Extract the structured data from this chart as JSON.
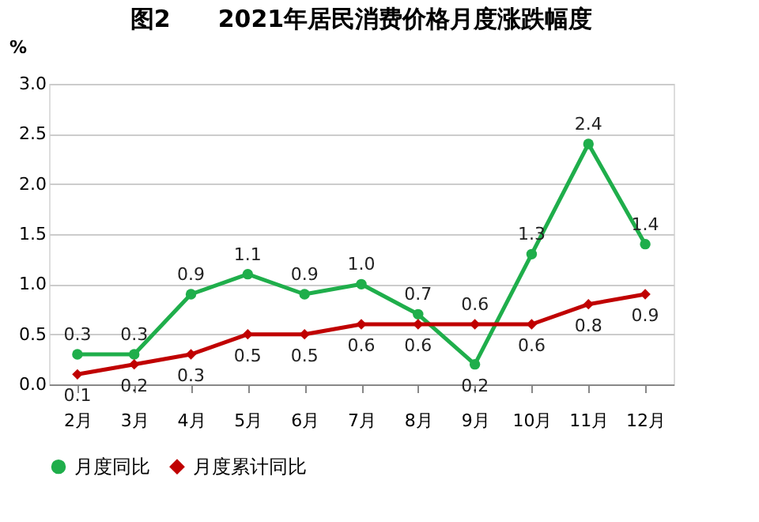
{
  "chart_data": {
    "type": "line",
    "title": "图2　　2021年居民消费价格月度涨跌幅度",
    "ylabel": "%",
    "categories": [
      "2月",
      "3月",
      "4月",
      "5月",
      "6月",
      "7月",
      "8月",
      "9月",
      "10月",
      "11月",
      "12月"
    ],
    "series": [
      {
        "name": "月度同比",
        "color": "#1fae4b",
        "marker": "circle",
        "values": [
          0.3,
          0.3,
          0.9,
          1.1,
          0.9,
          1.0,
          0.7,
          0.2,
          1.3,
          2.4,
          1.4
        ],
        "value_labels": [
          "0.3",
          "0.3",
          "0.9",
          "1.1",
          "0.9",
          "1.0",
          "0.7",
          "0.2",
          "1.3",
          "2.4",
          "1.4"
        ]
      },
      {
        "name": "月度累计同比",
        "color": "#c00000",
        "marker": "diamond",
        "values": [
          0.1,
          0.2,
          0.3,
          0.5,
          0.5,
          0.6,
          0.6,
          0.6,
          0.6,
          0.8,
          0.9
        ],
        "value_labels": [
          "0.1",
          "0.2",
          "0.3",
          "0.5",
          "0.5",
          "0.6",
          "0.6",
          "0.6",
          "0.6",
          "0.8",
          "0.9"
        ]
      }
    ],
    "ylim": [
      0,
      3
    ],
    "yticks": [
      {
        "value": 0,
        "label": "0.0"
      },
      {
        "value": 0.5,
        "label": "0.5"
      },
      {
        "value": 1,
        "label": "1.0"
      },
      {
        "value": 1.5,
        "label": "1.5"
      },
      {
        "value": 2,
        "label": "2.0"
      },
      {
        "value": 2.5,
        "label": "2.5"
      },
      {
        "value": 3,
        "label": "3.0"
      }
    ],
    "grid": "y",
    "legend": "bottom",
    "line_style": "solid"
  }
}
